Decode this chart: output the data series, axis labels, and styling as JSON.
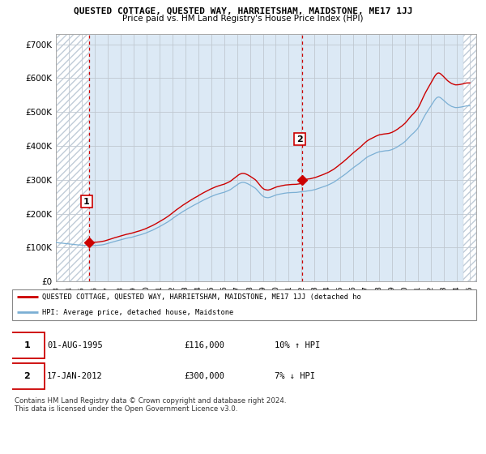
{
  "title": "QUESTED COTTAGE, QUESTED WAY, HARRIETSHAM, MAIDSTONE, ME17 1JJ",
  "subtitle": "Price paid vs. HM Land Registry's House Price Index (HPI)",
  "ylabel_ticks": [
    "£0",
    "£100K",
    "£200K",
    "£300K",
    "£400K",
    "£500K",
    "£600K",
    "£700K"
  ],
  "ytick_vals": [
    0,
    100000,
    200000,
    300000,
    400000,
    500000,
    600000,
    700000
  ],
  "ylim": [
    0,
    730000
  ],
  "xlim_start": 1993.0,
  "xlim_end": 2025.5,
  "purchase1_date": 1995.583,
  "purchase1_price": 116000,
  "purchase2_date": 2012.042,
  "purchase2_price": 300000,
  "legend_line1": "QUESTED COTTAGE, QUESTED WAY, HARRIETSHAM, MAIDSTONE, ME17 1JJ (detached ho",
  "legend_line2": "HPI: Average price, detached house, Maidstone",
  "footnote": "Contains HM Land Registry data © Crown copyright and database right 2024.\nThis data is licensed under the Open Government Licence v3.0.",
  "line_color_red": "#cc0000",
  "line_color_blue": "#7bafd4",
  "bg_color": "#dce9f5",
  "hatch_color": "#c0ccd8",
  "grid_color": "#c0c8d0",
  "dashed_vline_color": "#cc0000",
  "title_fontsize": 8.0,
  "subtitle_fontsize": 7.5
}
